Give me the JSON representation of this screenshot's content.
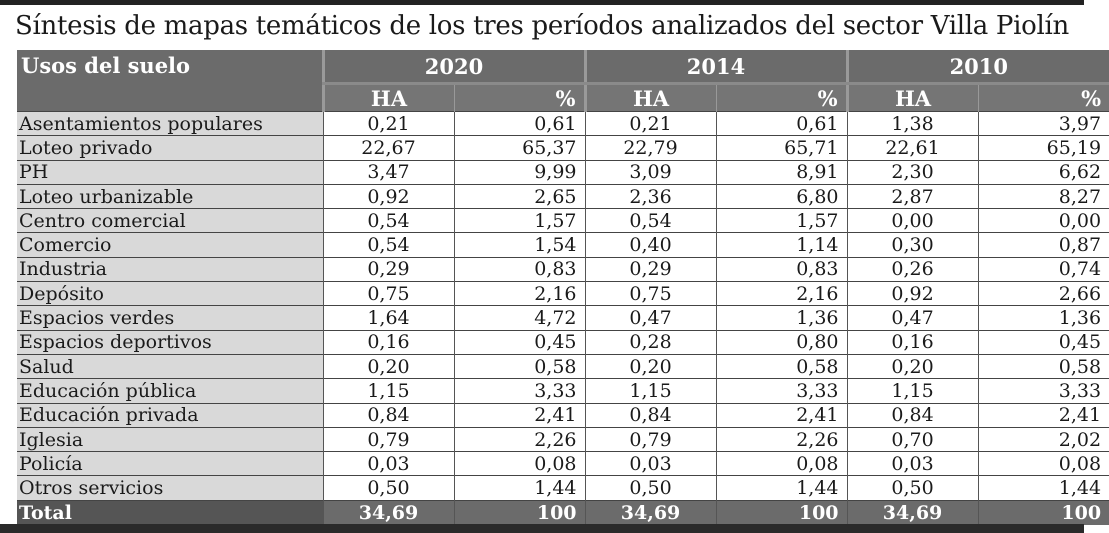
{
  "title": "Síntesis de mapas temáticos de los tres períodos analizados del sector Villa Piolín",
  "table": {
    "label_header": "Usos del suelo",
    "years": [
      "2020",
      "2014",
      "2010"
    ],
    "sub_headers": [
      "HA",
      "%",
      "HA",
      "%",
      "HA",
      "%"
    ],
    "rows": [
      {
        "name": "Asentamientos populares",
        "values": [
          "0,21",
          "0,61",
          "0,21",
          "0,61",
          "1,38",
          "3,97"
        ]
      },
      {
        "name": "Loteo privado",
        "values": [
          "22,67",
          "65,37",
          "22,79",
          "65,71",
          "22,61",
          "65,19"
        ]
      },
      {
        "name": "PH",
        "values": [
          "3,47",
          "9,99",
          "3,09",
          "8,91",
          "2,30",
          "6,62"
        ]
      },
      {
        "name": "Loteo urbanizable",
        "values": [
          "0,92",
          "2,65",
          "2,36",
          "6,80",
          "2,87",
          "8,27"
        ]
      },
      {
        "name": "Centro comercial",
        "values": [
          "0,54",
          "1,57",
          "0,54",
          "1,57",
          "0,00",
          "0,00"
        ]
      },
      {
        "name": "Comercio",
        "values": [
          "0,54",
          "1,54",
          "0,40",
          "1,14",
          "0,30",
          "0,87"
        ]
      },
      {
        "name": "Industria",
        "values": [
          "0,29",
          "0,83",
          "0,29",
          "0,83",
          "0,26",
          "0,74"
        ]
      },
      {
        "name": "Depósito",
        "values": [
          "0,75",
          "2,16",
          "0,75",
          "2,16",
          "0,92",
          "2,66"
        ]
      },
      {
        "name": "Espacios verdes",
        "values": [
          "1,64",
          "4,72",
          "0,47",
          "1,36",
          "0,47",
          "1,36"
        ]
      },
      {
        "name": "Espacios deportivos",
        "values": [
          "0,16",
          "0,45",
          "0,28",
          "0,80",
          "0,16",
          "0,45"
        ]
      },
      {
        "name": "Salud",
        "values": [
          "0,20",
          "0,58",
          "0,20",
          "0,58",
          "0,20",
          "0,58"
        ]
      },
      {
        "name": "Educación pública",
        "values": [
          "1,15",
          "3,33",
          "1,15",
          "3,33",
          "1,15",
          "3,33"
        ]
      },
      {
        "name": "Educación privada",
        "values": [
          "0,84",
          "2,41",
          "0,84",
          "2,41",
          "0,84",
          "2,41"
        ]
      },
      {
        "name": "Iglesia",
        "values": [
          "0,79",
          "2,26",
          "0,79",
          "2,26",
          "0,70",
          "2,02"
        ]
      },
      {
        "name": "Policía",
        "values": [
          "0,03",
          "0,08",
          "0,03",
          "0,08",
          "0,03",
          "0,08"
        ]
      },
      {
        "name": "Otros servicios",
        "values": [
          "0,50",
          "1,44",
          "0,50",
          "1,44",
          "0,50",
          "1,44"
        ]
      }
    ],
    "total": {
      "name": "Total",
      "values": [
        "34,69",
        "100",
        "34,69",
        "100",
        "34,69",
        "100"
      ]
    }
  }
}
